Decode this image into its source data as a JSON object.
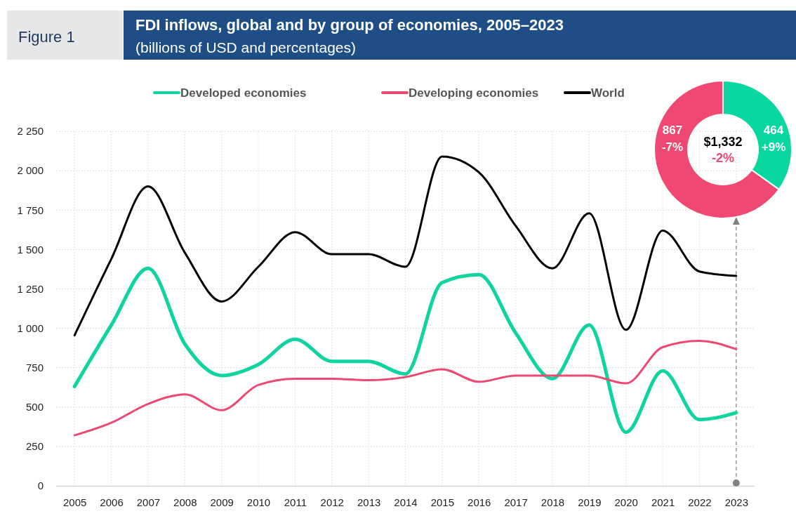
{
  "chart_data": [
    {
      "type": "line",
      "title": "FDI inflows, global and by group of economies, 2005–2023",
      "subtitle": "(billions of USD and percentages)",
      "annotations": [
        "Figure 1"
      ],
      "x": [
        2005,
        2006,
        2007,
        2008,
        2009,
        2010,
        2011,
        2012,
        2013,
        2014,
        2015,
        2016,
        2017,
        2018,
        2019,
        2020,
        2021,
        2022,
        2023
      ],
      "xlim": [
        2004.5,
        2023.5
      ],
      "xticks": [
        2005,
        2006,
        2007,
        2008,
        2009,
        2010,
        2011,
        2012,
        2013,
        2014,
        2015,
        2016,
        2017,
        2018,
        2019,
        2020,
        2021,
        2022,
        2023
      ],
      "ylim": [
        0,
        2250
      ],
      "yticks": [
        0,
        {
          "value": 250,
          "label": "250"
        },
        {
          "value": 500,
          "label": "500"
        },
        {
          "value": 750,
          "label": "750"
        },
        {
          "value": 1000,
          "label": "1 000"
        },
        {
          "value": 1250,
          "label": "1 250"
        },
        {
          "value": 1500,
          "label": "1 500"
        },
        {
          "value": 1750,
          "label": "1 750"
        },
        {
          "value": 2000,
          "label": "2 000"
        },
        {
          "value": 2250,
          "label": "2 250"
        }
      ],
      "grid": true,
      "legend": "top",
      "line_style": "solid",
      "marker": "none",
      "ref_lines": [
        {
          "axis": "x",
          "value": 2023,
          "color": "#808080",
          "line_style": "dashed"
        }
      ],
      "series": [
        {
          "name": "Developed economies",
          "color": "#0fd4a0",
          "values": [
            630,
            1020,
            1380,
            900,
            700,
            770,
            930,
            790,
            790,
            710,
            1290,
            1340,
            970,
            680,
            1020,
            340,
            730,
            420,
            464
          ]
        },
        {
          "name": "Developing economies",
          "color": "#ee4872",
          "values": [
            320,
            400,
            520,
            580,
            480,
            640,
            680,
            680,
            670,
            690,
            740,
            660,
            700,
            700,
            700,
            650,
            880,
            920,
            867
          ]
        },
        {
          "name": "World",
          "color": "#000000",
          "values": [
            955,
            1440,
            1900,
            1480,
            1170,
            1390,
            1610,
            1470,
            1470,
            1390,
            2090,
            1990,
            1650,
            1380,
            1730,
            990,
            1620,
            1360,
            1332
          ]
        }
      ]
    },
    {
      "type": "donut",
      "categories": [
        null,
        null
      ],
      "values": [
        464,
        867
      ],
      "colors": [
        "#0ad6a0",
        "#ef4873"
      ],
      "value_labels": [
        "464 +9%",
        "867 -7%"
      ],
      "annotations": [
        "$1,332",
        "-2%"
      ]
    }
  ]
}
